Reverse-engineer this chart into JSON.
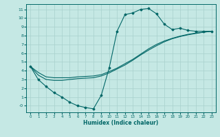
{
  "xlabel": "Humidex (Indice chaleur)",
  "bg_color": "#c5e8e4",
  "grid_color": "#a8d0cc",
  "line_color": "#006666",
  "xlim": [
    -0.5,
    23.5
  ],
  "ylim": [
    -0.75,
    11.6
  ],
  "xticks": [
    0,
    1,
    2,
    3,
    4,
    5,
    6,
    7,
    8,
    9,
    10,
    11,
    12,
    13,
    14,
    15,
    16,
    17,
    18,
    19,
    20,
    21,
    22,
    23
  ],
  "yticks": [
    0,
    1,
    2,
    3,
    4,
    5,
    6,
    7,
    8,
    9,
    10,
    11
  ],
  "ytick_labels": [
    "-0",
    "1",
    "2",
    "3",
    "4",
    "5",
    "6",
    "7",
    "8",
    "9",
    "10",
    "11"
  ],
  "curve1_x": [
    0,
    1,
    2,
    3,
    4,
    5,
    6,
    7,
    8,
    9,
    10,
    11,
    12,
    13,
    14,
    15,
    16,
    17,
    18,
    19,
    20,
    21,
    22,
    23
  ],
  "curve1_y": [
    4.5,
    3.0,
    2.2,
    1.5,
    1.0,
    0.4,
    0.0,
    -0.2,
    -0.35,
    1.2,
    4.3,
    8.5,
    10.4,
    10.6,
    11.0,
    11.1,
    10.5,
    9.3,
    8.7,
    8.85,
    8.6,
    8.5,
    8.5,
    8.5
  ],
  "curve2_x": [
    0,
    1,
    2,
    3,
    4,
    5,
    6,
    7,
    8,
    9,
    10,
    11,
    12,
    13,
    14,
    15,
    16,
    17,
    18,
    19,
    20,
    21,
    22,
    23
  ],
  "curve2_y": [
    4.5,
    3.8,
    3.3,
    3.2,
    3.2,
    3.2,
    3.3,
    3.35,
    3.4,
    3.55,
    3.9,
    4.3,
    4.8,
    5.3,
    5.9,
    6.5,
    7.0,
    7.4,
    7.7,
    7.95,
    8.15,
    8.3,
    8.4,
    8.5
  ],
  "curve3_x": [
    0,
    1,
    2,
    3,
    4,
    5,
    6,
    7,
    8,
    9,
    10,
    11,
    12,
    13,
    14,
    15,
    16,
    17,
    18,
    19,
    20,
    21,
    22,
    23
  ],
  "curve3_y": [
    4.5,
    3.5,
    3.0,
    2.9,
    2.9,
    3.0,
    3.1,
    3.15,
    3.2,
    3.4,
    3.75,
    4.2,
    4.65,
    5.2,
    5.8,
    6.35,
    6.85,
    7.3,
    7.65,
    7.9,
    8.1,
    8.25,
    8.4,
    8.5
  ]
}
